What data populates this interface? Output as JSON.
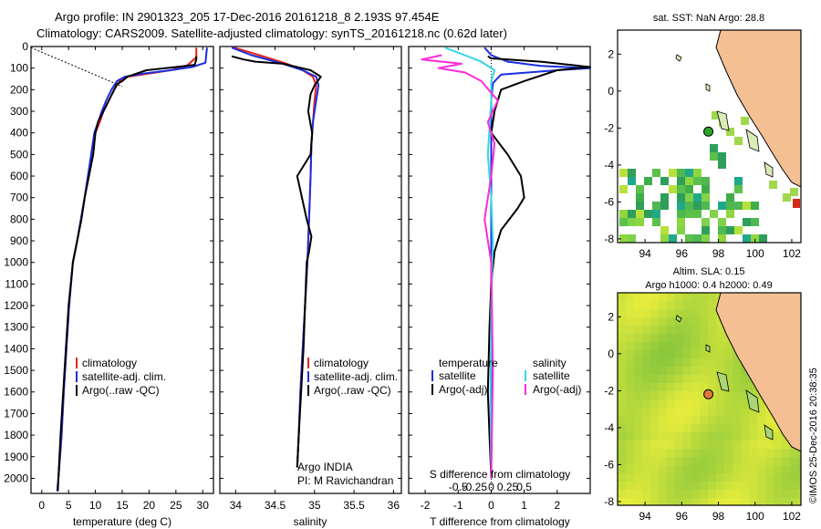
{
  "header": {
    "line1": "Argo profile: IN 2901323_205 17-Dec-2016 20161218_8 2.193S 97.454E",
    "line2": "Climatology: CARS2009. Satellite-adjusted climatology: synTS_20161218.nc (0.62d later)"
  },
  "colors": {
    "climatology": "#e8211b",
    "satellite": "#1a2ee0",
    "argo": "#000000",
    "sat_s": "#33d6e6",
    "argo_s": "#ff2bd6",
    "land": "#f5bf94"
  },
  "chart_data": [
    {
      "type": "line",
      "panel": "temperature",
      "xlabel": "temperature (deg C)",
      "ylabel": "",
      "xlim": [
        -2,
        32
      ],
      "ylim": [
        2070,
        0
      ],
      "xticks": [
        0,
        5,
        10,
        15,
        20,
        25,
        30
      ],
      "yticks": [
        0,
        100,
        200,
        300,
        400,
        500,
        600,
        700,
        800,
        900,
        1000,
        1100,
        1200,
        1300,
        1400,
        1500,
        1600,
        1700,
        1800,
        1900,
        2000
      ],
      "legend": [
        "climatology",
        "satellite-adj. clim.",
        "Argo(..raw -QC)"
      ],
      "series": [
        {
          "name": "climatology",
          "key": "climatology",
          "x": [
            28.8,
            28.8,
            27,
            24,
            20,
            16,
            14.5,
            13.5,
            12.5,
            11.5,
            10.8,
            10,
            9.3,
            8.6,
            8,
            7.3,
            6.6,
            5.8,
            5.1,
            4.6,
            4.1,
            3.7,
            3.4,
            3.1,
            2.9
          ],
          "y": [
            5,
            50,
            90,
            110,
            125,
            140,
            160,
            200,
            250,
            300,
            350,
            400,
            500,
            600,
            700,
            800,
            900,
            1000,
            1200,
            1400,
            1600,
            1800,
            1900,
            2000,
            2060
          ]
        },
        {
          "name": "satellite-adj. clim.",
          "key": "satellite",
          "x": [
            30.8,
            30.5,
            28,
            24,
            19,
            15.5,
            14,
            13,
            12,
            11.2,
            10.5,
            9.8,
            9.2,
            8.6,
            8,
            7.3,
            6.6,
            5.8,
            5.1,
            4.6,
            4.1,
            3.7,
            3.4,
            3.1,
            2.9
          ],
          "y": [
            5,
            75,
            95,
            110,
            125,
            140,
            160,
            200,
            250,
            300,
            350,
            400,
            500,
            600,
            700,
            800,
            900,
            1000,
            1200,
            1400,
            1600,
            1800,
            1900,
            2000,
            2060
          ]
        },
        {
          "name": "Argo(..raw -QC)",
          "key": "argo",
          "x": [
            28.8,
            28.8,
            28.5,
            25,
            19.5,
            16,
            15,
            14,
            13.5,
            12.5,
            11.5,
            10.5,
            10,
            9.6,
            8.8,
            8,
            7.4,
            6.6,
            5.8,
            5,
            4.5,
            4,
            3.5,
            3.2,
            3
          ],
          "y": [
            45,
            60,
            85,
            95,
            110,
            140,
            160,
            175,
            200,
            250,
            300,
            350,
            400,
            500,
            600,
            700,
            800,
            900,
            1000,
            1200,
            1400,
            1600,
            1800,
            1950,
            2060
          ]
        }
      ],
      "annotation": {
        "x": [
          -2,
          15
        ],
        "y": [
          5,
          185
        ]
      }
    },
    {
      "type": "line",
      "panel": "salinity",
      "xlabel": "salinity",
      "xlim": [
        33.8,
        36.1
      ],
      "ylim": [
        2070,
        0
      ],
      "xticks": [
        34,
        34.5,
        35,
        35.5,
        36
      ],
      "legend": [
        "climatology",
        "satellite-adj. clim.",
        "Argo(..raw -QC)"
      ],
      "annotation_lines": [
        "Argo INDIA",
        "PI: M Ravichandran"
      ],
      "series": [
        {
          "name": "climatology",
          "key": "climatology",
          "x": [
            33.98,
            34.3,
            34.65,
            34.85,
            34.98,
            35.02,
            35.0,
            34.98,
            34.96,
            34.95,
            34.93,
            34.91,
            34.88,
            34.85,
            34.82,
            34.8,
            34.78
          ],
          "y": [
            5,
            40,
            80,
            110,
            140,
            180,
            250,
            350,
            450,
            600,
            800,
            1000,
            1200,
            1400,
            1600,
            1800,
            1950
          ]
        },
        {
          "name": "satellite-adj. clim.",
          "key": "satellite",
          "x": [
            33.95,
            34.2,
            34.6,
            34.85,
            35.02,
            35.05,
            35.02,
            34.98,
            34.96,
            34.95,
            34.93,
            34.91,
            34.88,
            34.85,
            34.82,
            34.8,
            34.78
          ],
          "y": [
            5,
            40,
            80,
            110,
            140,
            180,
            250,
            350,
            450,
            600,
            800,
            1000,
            1200,
            1400,
            1600,
            1800,
            1950
          ]
        },
        {
          "name": "Argo(..raw -QC)",
          "key": "argo",
          "x": [
            33.95,
            34.1,
            34.25,
            34.6,
            34.95,
            35.08,
            35.0,
            34.95,
            34.92,
            34.97,
            34.95,
            34.78,
            34.9,
            34.96,
            34.93,
            34.9,
            34.88,
            34.86,
            34.83,
            34.8,
            34.78
          ],
          "y": [
            45,
            60,
            70,
            80,
            110,
            140,
            180,
            220,
            300,
            400,
            500,
            600,
            800,
            880,
            950,
            1000,
            1200,
            1400,
            1600,
            1800,
            1950
          ]
        }
      ]
    },
    {
      "type": "line",
      "panel": "difference",
      "xlabel": "T difference from climatology",
      "xlabel2": "S difference from climatology",
      "xlim": [
        -2.5,
        3.0
      ],
      "ylim": [
        2070,
        0
      ],
      "xticks": [
        -2,
        -1,
        0,
        1,
        2
      ],
      "sticks": [
        "-0.5",
        "-0.25",
        "0",
        "0.25",
        "0.5"
      ],
      "legend_left_title": "temperature",
      "legend_right_title": "salinity",
      "legend_left": [
        "satellite",
        "Argo(-adj)"
      ],
      "legend_right": [
        "satellite",
        "Argo(-adj)"
      ],
      "series": [
        {
          "name": "satellite",
          "key": "satellite",
          "x": [
            -0.2,
            0,
            0.5,
            1.5,
            3.0,
            2.0,
            0.3,
            0.05,
            0,
            0,
            0,
            0,
            0,
            0
          ],
          "y": [
            5,
            40,
            70,
            90,
            100,
            110,
            130,
            170,
            250,
            400,
            700,
            1000,
            1500,
            2000
          ]
        },
        {
          "name": "Argo(-adj)",
          "key": "argo",
          "x": [
            -0.1,
            0,
            1.5,
            3.0,
            2.0,
            1.0,
            0.3,
            0.1,
            0,
            0.5,
            0.9,
            1.0,
            0.8,
            0.3,
            0.1,
            0,
            -0.05,
            -0.1,
            -0.05,
            0
          ],
          "y": [
            45,
            55,
            70,
            95,
            110,
            160,
            200,
            300,
            400,
            500,
            600,
            700,
            750,
            850,
            950,
            1100,
            1300,
            1600,
            1800,
            2000
          ]
        },
        {
          "name": "satellite",
          "key": "sat_s",
          "x": [
            -1.4,
            -0.8,
            -0.3,
            0.1,
            0,
            0,
            -0.1,
            0,
            0.05,
            0,
            -0.02,
            0
          ],
          "y": [
            5,
            40,
            70,
            110,
            160,
            250,
            500,
            700,
            900,
            1200,
            1600,
            2000
          ]
        },
        {
          "name": "Argo(-adj)",
          "key": "argo_s",
          "x": [
            -1.5,
            -2.1,
            -0.9,
            -1.6,
            -0.8,
            -0.3,
            0.2,
            -0.1,
            0.1,
            0,
            -0.2,
            0,
            0.05,
            0
          ],
          "y": [
            40,
            60,
            80,
            100,
            120,
            160,
            250,
            350,
            450,
            600,
            800,
            1000,
            1500,
            2000
          ]
        }
      ]
    },
    {
      "type": "heatmap",
      "panel": "map-sst",
      "title": "sat. SST: NaN Argo: 28.8",
      "xlim": [
        92.5,
        102.5
      ],
      "ylim": [
        -8.2,
        3.3
      ],
      "xticks": [
        94,
        96,
        98,
        100,
        102
      ],
      "yticks": [
        2,
        0,
        -2,
        -4,
        -6,
        -8
      ],
      "argo_position": {
        "lon": 97.454,
        "lat": -2.193
      }
    },
    {
      "type": "heatmap",
      "panel": "map-sla",
      "title": "Altim. SLA: 0.15",
      "subtitle": "Argo h1000: 0.4 h2000: 0.49",
      "xlim": [
        92.5,
        102.5
      ],
      "ylim": [
        -8.2,
        3.3
      ],
      "xticks": [
        94,
        96,
        98,
        100,
        102
      ],
      "yticks": [
        2,
        0,
        -2,
        -4,
        -6,
        -8
      ],
      "argo_position": {
        "lon": 97.454,
        "lat": -2.193
      }
    }
  ],
  "credit": "©IMOS 25-Dec-2016 20:38:35"
}
